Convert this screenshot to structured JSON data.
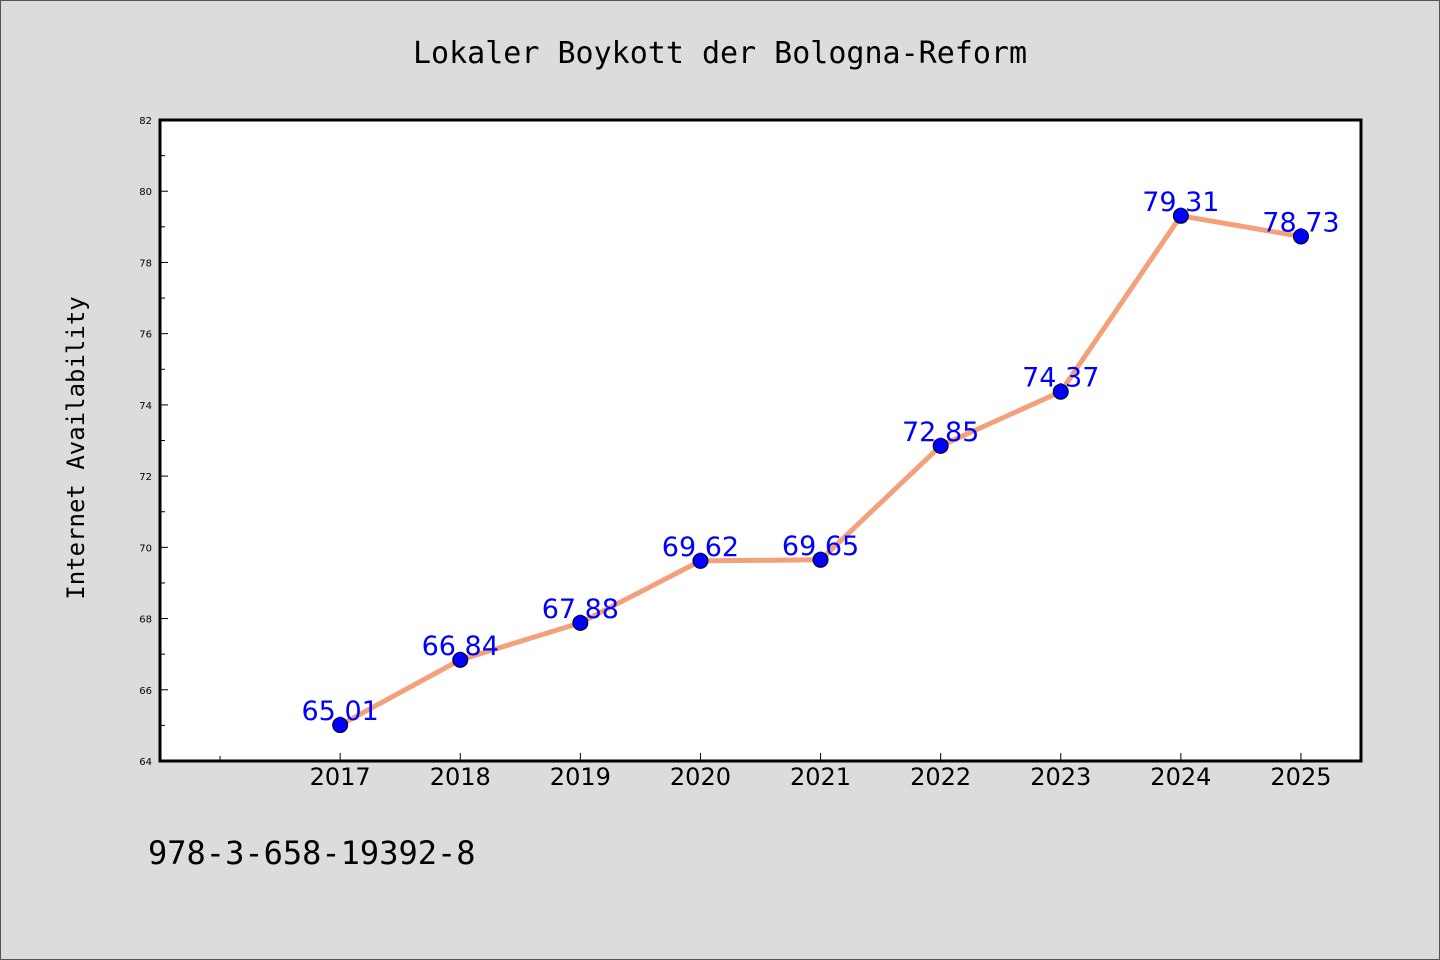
{
  "footer_text": "978-3-658-19392-8",
  "colors": {
    "background": "#dcdcdc",
    "plot_background": "#ffffff",
    "line": "#f4a07a",
    "marker": "#0000ff",
    "data_label": "#0000ff"
  },
  "chart_data": {
    "type": "line",
    "title": "Lokaler Boykott der Bologna-Reform",
    "xlabel": "",
    "ylabel": "Internet Availability",
    "ylim": [
      64,
      82
    ],
    "yticks": [
      64,
      66,
      68,
      70,
      72,
      74,
      76,
      78,
      80,
      82
    ],
    "xlim": [
      2015.5,
      2025.5
    ],
    "grid": false,
    "legend": "none",
    "series": [
      {
        "x": [
          2017,
          2018,
          2019,
          2020,
          2021,
          2022,
          2023,
          2024,
          2025
        ],
        "values": [
          65.01,
          66.84,
          67.88,
          69.62,
          69.65,
          72.85,
          74.37,
          79.31,
          78.73
        ],
        "labels": [
          "65.01",
          "66.84",
          "67.88",
          "69.62",
          "69.65",
          "72.85",
          "74.37",
          "79.31",
          "78.73"
        ]
      }
    ]
  }
}
